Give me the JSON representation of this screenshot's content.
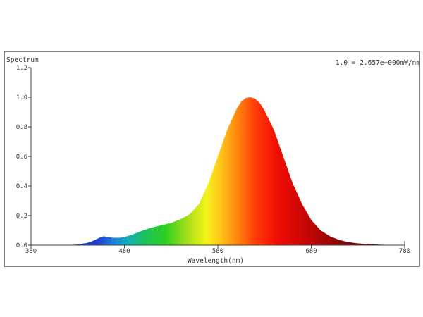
{
  "chart_data": {
    "type": "area",
    "title": "Spectrum",
    "annotation": "1.0 = 2.657e+000mW/nm",
    "xlabel": "Wavelength(nm)",
    "ylabel": "",
    "xlim": [
      380,
      780
    ],
    "ylim": [
      0,
      1.2
    ],
    "x_ticks": [
      "380",
      "480",
      "580",
      "680",
      "780"
    ],
    "y_ticks": [
      "0.0",
      "0.2",
      "0.4",
      "0.6",
      "0.8",
      "1.0",
      "1.2"
    ],
    "grid": false,
    "fill": "wavelength-colored spectrum gradient",
    "series": [
      {
        "x": [
          380,
          400,
          420,
          430,
          440,
          445,
          450,
          455,
          458,
          462,
          468,
          475,
          480,
          490,
          500,
          510,
          520,
          530,
          540,
          550,
          560,
          570,
          580,
          590,
          600,
          605,
          610,
          615,
          620,
          625,
          630,
          640,
          650,
          660,
          670,
          680,
          690,
          700,
          710,
          720,
          730,
          740,
          760,
          780
        ],
        "y": [
          0.0,
          0.0,
          0.0,
          0.005,
          0.015,
          0.025,
          0.04,
          0.055,
          0.06,
          0.055,
          0.05,
          0.05,
          0.055,
          0.075,
          0.1,
          0.12,
          0.135,
          0.15,
          0.175,
          0.21,
          0.28,
          0.42,
          0.6,
          0.78,
          0.92,
          0.97,
          0.995,
          1.0,
          0.99,
          0.96,
          0.91,
          0.78,
          0.6,
          0.42,
          0.28,
          0.17,
          0.1,
          0.06,
          0.035,
          0.02,
          0.012,
          0.007,
          0.002,
          0.0
        ]
      }
    ]
  }
}
